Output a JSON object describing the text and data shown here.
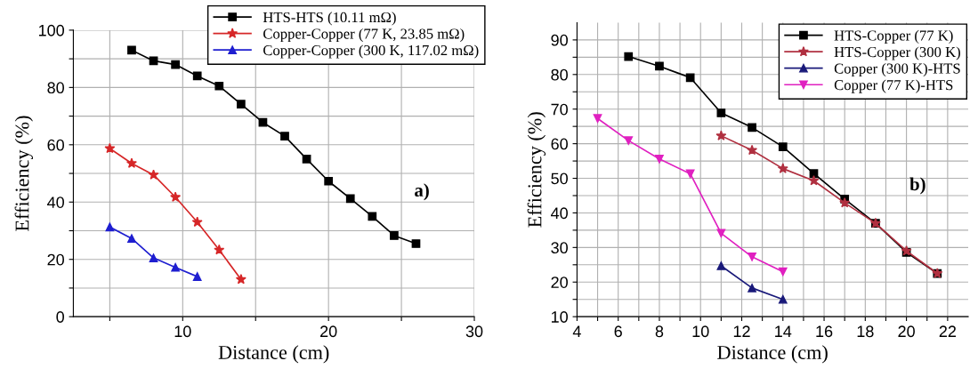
{
  "chart_data": [
    {
      "type": "line",
      "xlabel": "Distance (cm)",
      "ylabel": "Efficiency (%)",
      "annotations": [
        "a)"
      ],
      "legend": "top right",
      "grid": true,
      "line_style": "solid",
      "xlim": [
        2.5,
        30
      ],
      "ylim": [
        0,
        100
      ],
      "xticks": [
        {
          "value": 5,
          "label": null
        },
        10,
        {
          "value": 15,
          "label": null
        },
        20,
        {
          "value": 25,
          "label": null
        },
        30
      ],
      "yticks": [
        0,
        {
          "value": 10,
          "label": null
        },
        20,
        {
          "value": 30,
          "label": null
        },
        40,
        {
          "value": 50,
          "label": null
        },
        60,
        {
          "value": 70,
          "label": null
        },
        80,
        {
          "value": 90,
          "label": null
        },
        100
      ],
      "series": [
        {
          "name": "HTS-HTS (10.11 mΩ)",
          "color": "#000000",
          "marker": "square",
          "x": [
            6.5,
            8,
            9.5,
            11,
            12.5,
            14,
            15.5,
            17,
            18.5,
            20,
            21.5,
            23,
            24.5,
            26
          ],
          "values": [
            93,
            89.3,
            88,
            84,
            80.5,
            74.2,
            67.8,
            63,
            55,
            47.3,
            41.2,
            35,
            28.3,
            25.5
          ]
        },
        {
          "name": "Copper-Copper (77 K, 23.85 mΩ)",
          "color": "#d62728",
          "marker": "star",
          "x": [
            5,
            6.5,
            8,
            9.5,
            11,
            12.5,
            14
          ],
          "values": [
            58.7,
            53.5,
            49.5,
            41.7,
            33,
            23.3,
            13
          ]
        },
        {
          "name": "Copper-Copper (300 K, 117.02 mΩ)",
          "color": "#1f1fd0",
          "marker": "triangle",
          "x": [
            5,
            6.5,
            8,
            9.5,
            11
          ],
          "values": [
            31.3,
            27.3,
            20.5,
            17.2,
            14
          ]
        }
      ]
    },
    {
      "type": "line",
      "xlabel": "Distance (cm)",
      "ylabel": "Efficiency (%)",
      "annotations": [
        "b)"
      ],
      "legend": "top right",
      "grid": true,
      "line_style": "solid",
      "xlim": [
        4,
        23
      ],
      "ylim": [
        10,
        95
      ],
      "xticks": [
        4,
        {
          "value": 5,
          "label": null
        },
        6,
        {
          "value": 7,
          "label": null
        },
        8,
        {
          "value": 9,
          "label": null
        },
        10,
        {
          "value": 11,
          "label": null
        },
        12,
        {
          "value": 13,
          "label": null
        },
        14,
        {
          "value": 15,
          "label": null
        },
        16,
        {
          "value": 17,
          "label": null
        },
        18,
        {
          "value": 19,
          "label": null
        },
        20,
        {
          "value": 21,
          "label": null
        },
        22
      ],
      "yticks": [
        10,
        {
          "value": 15,
          "label": null
        },
        20,
        {
          "value": 25,
          "label": null
        },
        30,
        {
          "value": 35,
          "label": null
        },
        40,
        {
          "value": 45,
          "label": null
        },
        50,
        {
          "value": 55,
          "label": null
        },
        60,
        {
          "value": 65,
          "label": null
        },
        70,
        {
          "value": 75,
          "label": null
        },
        80,
        {
          "value": 85,
          "label": null
        },
        90
      ],
      "series": [
        {
          "name": "HTS-Copper (77 K)",
          "color": "#000000",
          "marker": "square",
          "x": [
            6.5,
            8,
            9.5,
            11,
            12.5,
            14,
            15.5,
            17,
            18.5,
            20,
            21.5
          ],
          "values": [
            85.2,
            82.4,
            79.1,
            68.9,
            64.7,
            59.1,
            51.4,
            44,
            37,
            28.6,
            22.5
          ]
        },
        {
          "name": "HTS-Copper (300 K)",
          "color": "#b03040",
          "marker": "star",
          "x": [
            11,
            12.5,
            14,
            15.5,
            17,
            18.5,
            20,
            21.5
          ],
          "values": [
            62.3,
            58.1,
            52.8,
            49.3,
            42.9,
            37,
            29,
            22.5
          ]
        },
        {
          "name": "Copper (300 K)-HTS",
          "color": "#1a1a7a",
          "marker": "triangle",
          "x": [
            11,
            12.5,
            14
          ],
          "values": [
            24.7,
            18.3,
            15
          ]
        },
        {
          "name": "Copper (77 K)-HTS",
          "color": "#e020c0",
          "marker": "triangle_down",
          "x": [
            5,
            6.5,
            8,
            9.5,
            11,
            12.5,
            14
          ],
          "values": [
            67.3,
            60.9,
            55.6,
            51.3,
            34.1,
            27.3,
            23
          ]
        }
      ]
    }
  ]
}
